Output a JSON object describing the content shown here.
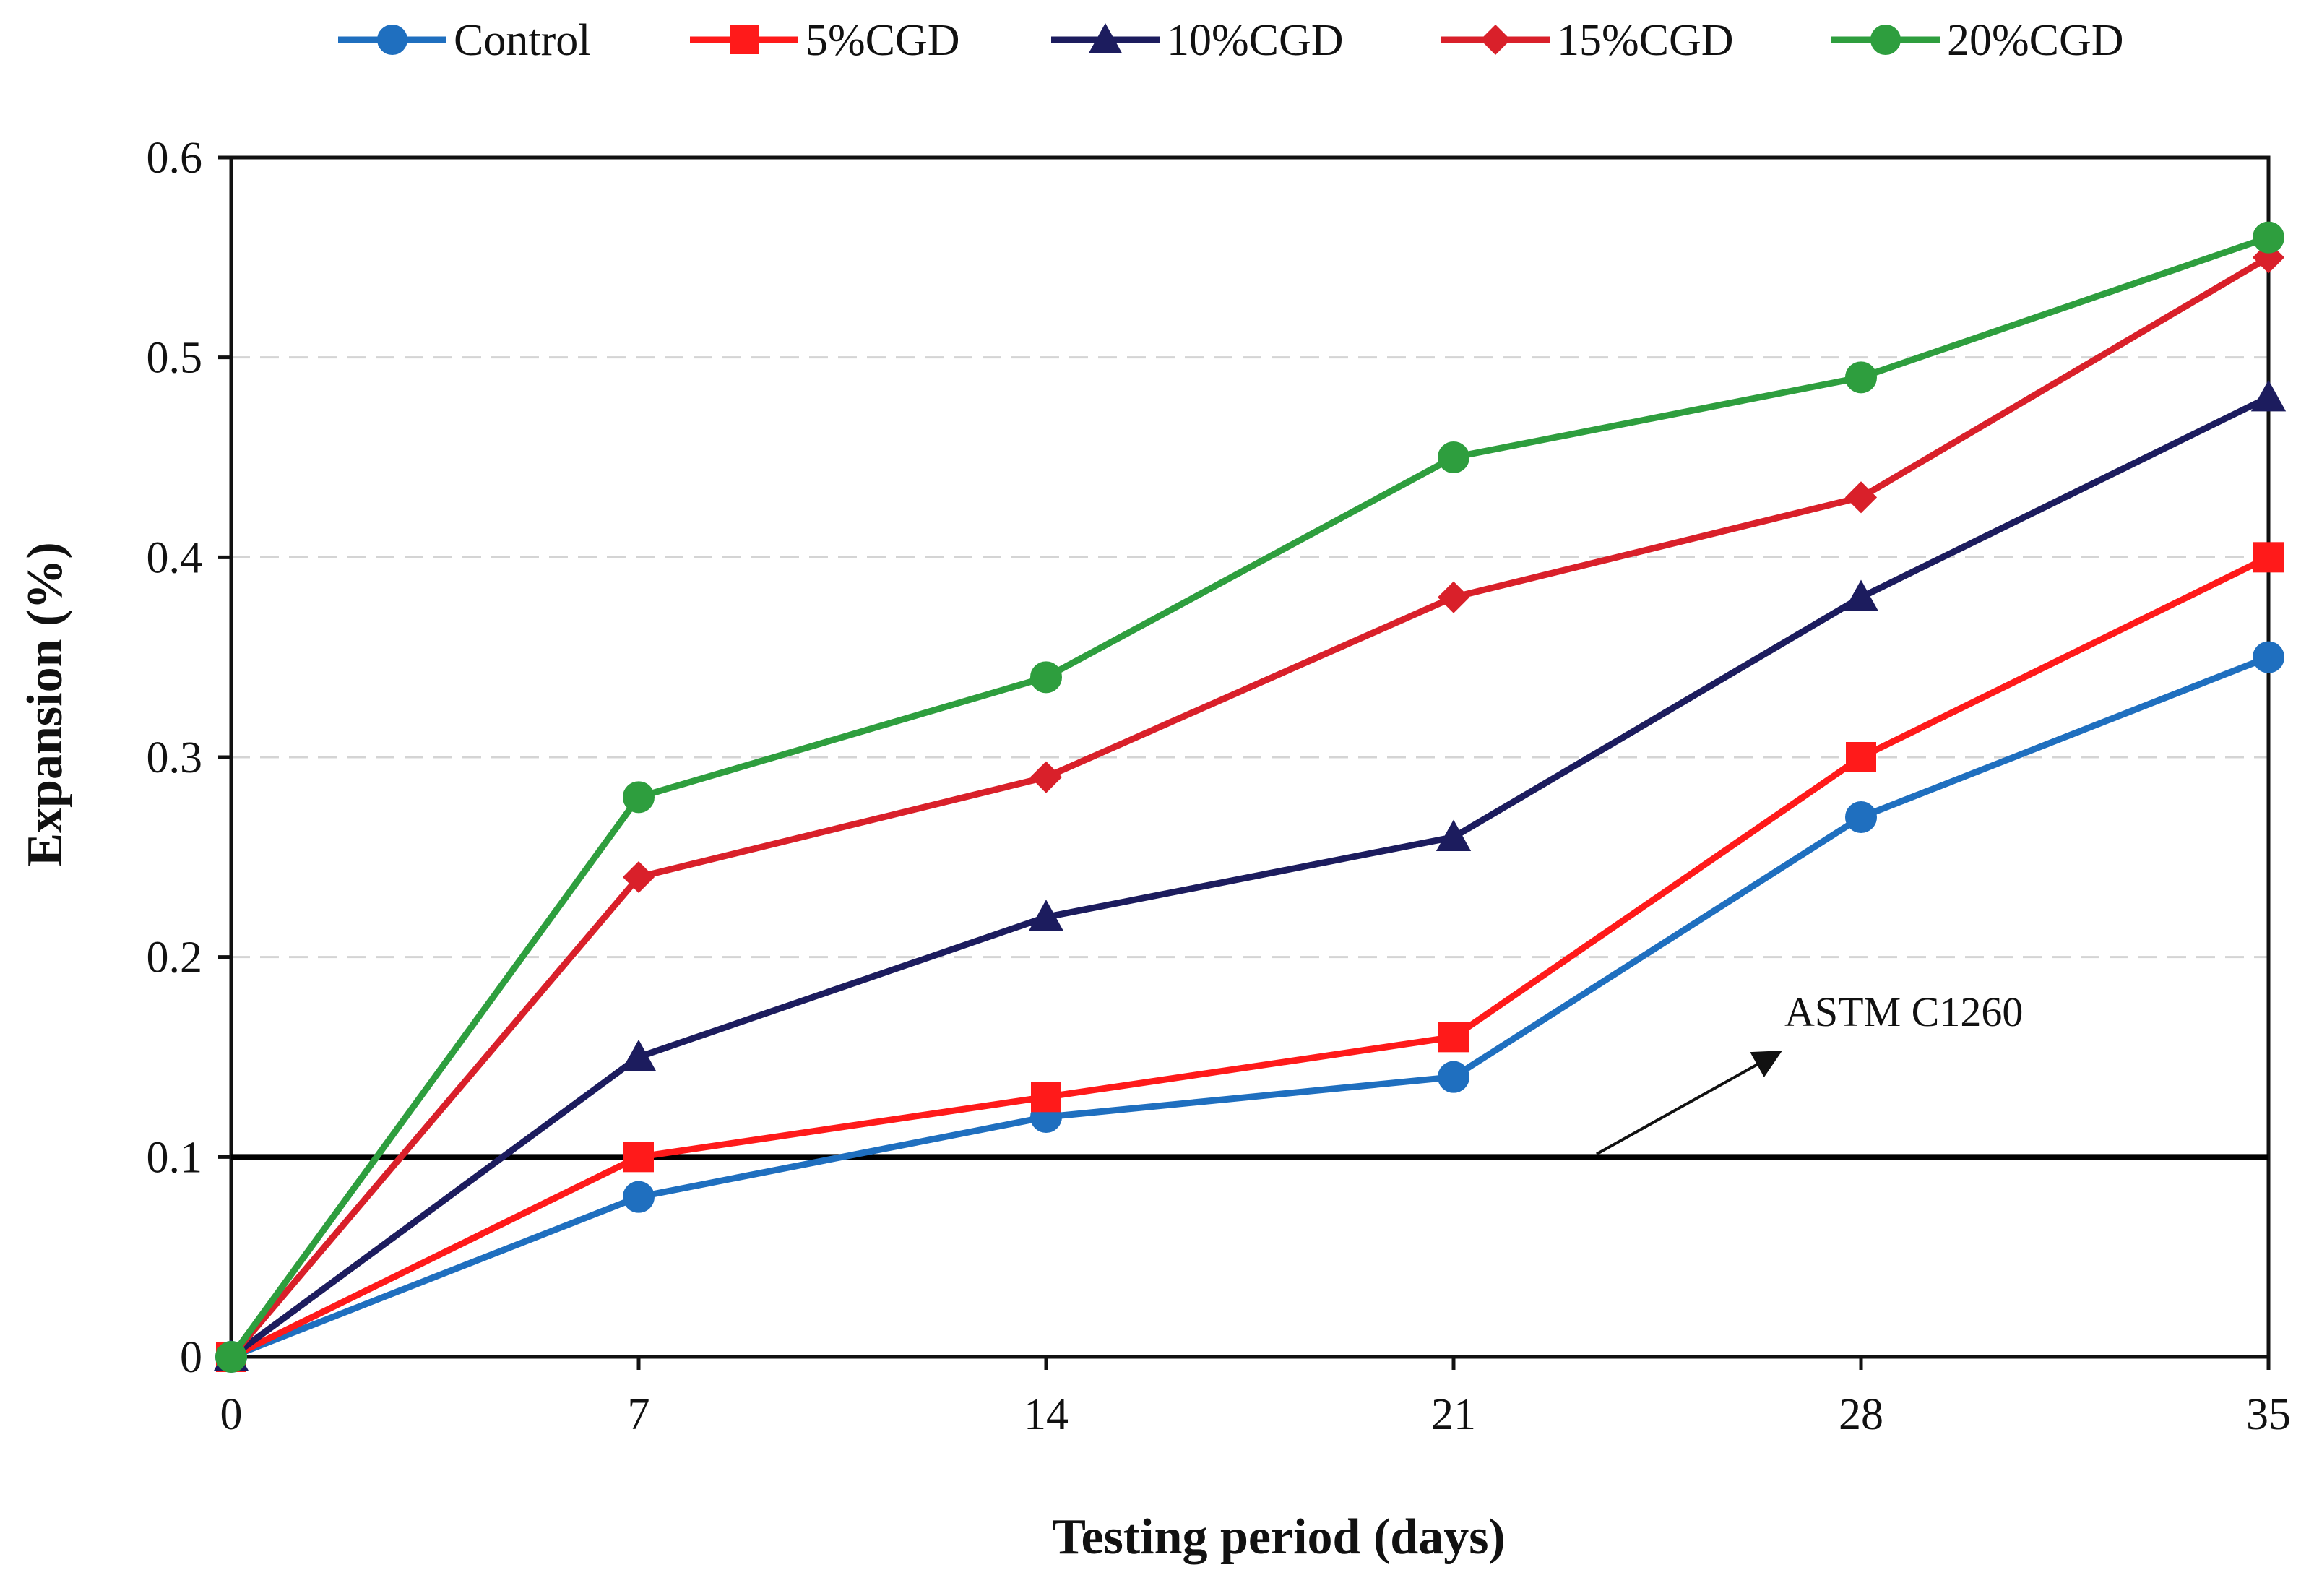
{
  "chart_data": {
    "type": "line",
    "title": "",
    "xlabel": "Testing period (days)",
    "ylabel": "Expansion (%)",
    "x": [
      0,
      7,
      14,
      21,
      28,
      35
    ],
    "x_tick_labels": [
      "0",
      "7",
      "14",
      "21",
      "28",
      "35"
    ],
    "y_tick_labels": [
      "0",
      "0.1",
      "0.2",
      "0.3",
      "0.4",
      "0.5",
      "0.6"
    ],
    "xlim": [
      0,
      35
    ],
    "ylim": [
      0,
      0.6
    ],
    "grid": "horizontal dashed",
    "legend_position": "top-center",
    "series": [
      {
        "name": "Control",
        "color": "#1F6FBF",
        "marker": "circle",
        "values": [
          0,
          0.08,
          0.12,
          0.14,
          0.27,
          0.35
        ]
      },
      {
        "name": "5%CGD",
        "color": "#FF1A1A",
        "marker": "square",
        "values": [
          0,
          0.1,
          0.13,
          0.16,
          0.3,
          0.4
        ]
      },
      {
        "name": "10%CGD",
        "color": "#1C1C5E",
        "marker": "triangle",
        "values": [
          0,
          0.15,
          0.22,
          0.26,
          0.38,
          0.48
        ]
      },
      {
        "name": "15%CGD",
        "color": "#D9202A",
        "marker": "diamond",
        "values": [
          0,
          0.24,
          0.29,
          0.38,
          0.43,
          0.55
        ]
      },
      {
        "name": "20%CGD",
        "color": "#2E9E3E",
        "marker": "circle",
        "values": [
          0,
          0.28,
          0.34,
          0.45,
          0.49,
          0.56
        ]
      }
    ],
    "reference_line": {
      "label": "ASTM C1260",
      "value": 0.1,
      "color": "#000000"
    },
    "annotations": [
      {
        "text": "ASTM C1260",
        "points_to": "reference line at 0.1"
      }
    ]
  }
}
